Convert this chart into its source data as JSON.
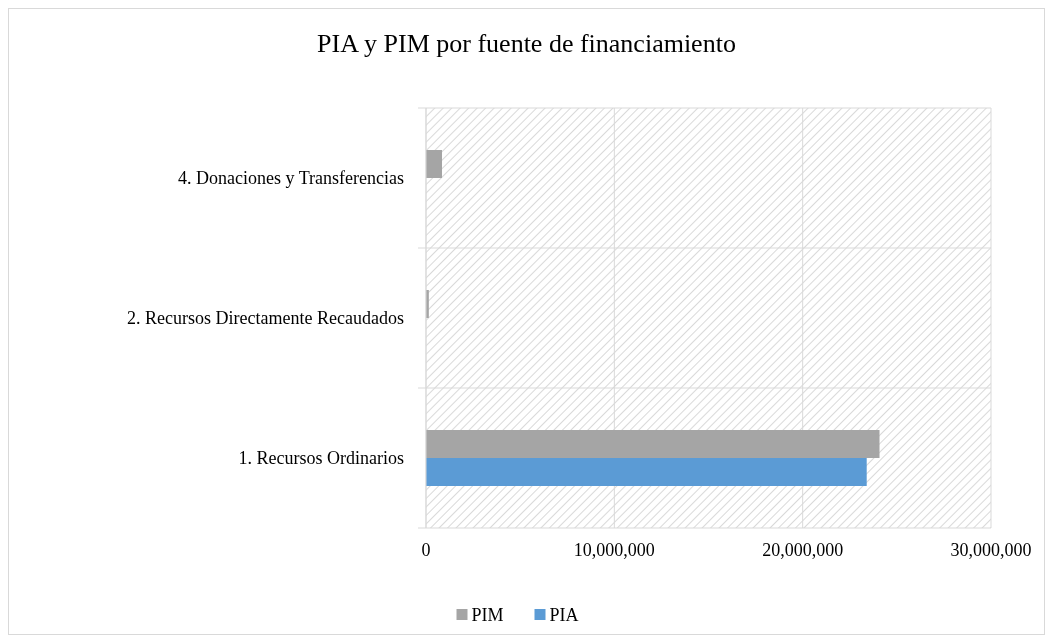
{
  "chart_data": {
    "type": "bar",
    "orientation": "horizontal",
    "title": "PIA y PIM por fuente de financiamiento",
    "categories": [
      "4. Donaciones y Transferencias",
      "2. Recursos Directamente Recaudados",
      "1. Recursos Ordinarios"
    ],
    "series": [
      {
        "name": "PIM",
        "color": "#a5a5a5",
        "values": [
          850000,
          150000,
          24080000
        ]
      },
      {
        "name": "PIA",
        "color": "#5b9bd5",
        "values": [
          0,
          0,
          23400000
        ]
      }
    ],
    "xlim": [
      0,
      30000000
    ],
    "xticks": [
      {
        "value": 0,
        "label": "0"
      },
      {
        "value": 10000000,
        "label": "10,000,000"
      },
      {
        "value": 20000000,
        "label": "20,000,000"
      },
      {
        "value": 30000000,
        "label": "30,000,000"
      }
    ],
    "grid": true,
    "legend": "bottom"
  }
}
